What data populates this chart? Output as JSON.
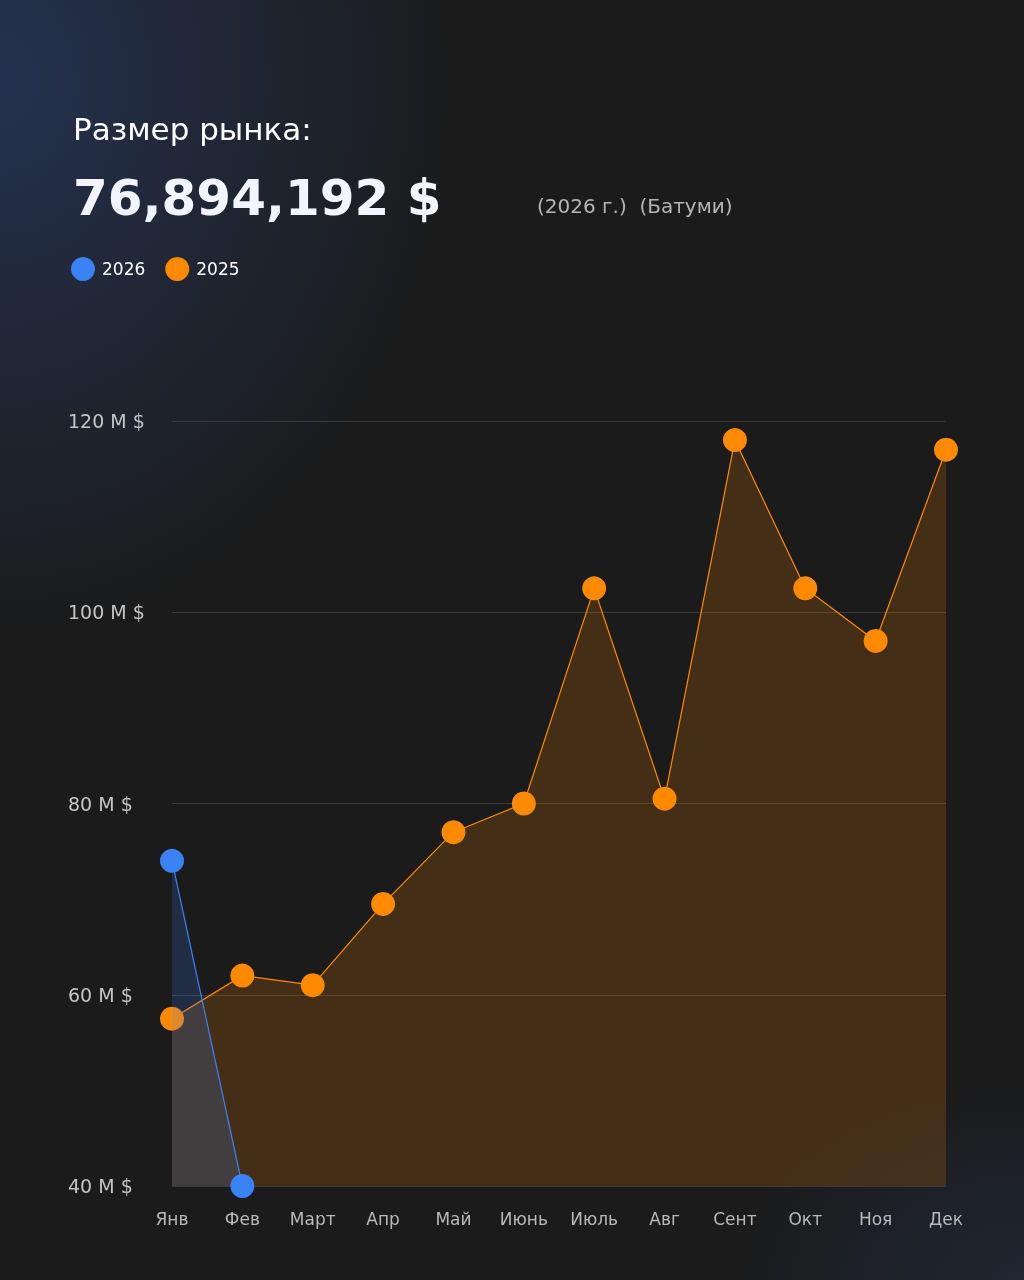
{
  "chart_data": {
    "type": "area",
    "title": "Размер рынка:",
    "subtitle": "76,894,192 $",
    "annotations": [
      "(2026 г.)  (Батуми)"
    ],
    "categories": [
      "Янв",
      "Фев",
      "Март",
      "Апр",
      "Май",
      "Июнь",
      "Июль",
      "Авг",
      "Сент",
      "Окт",
      "Ноя",
      "Дек"
    ],
    "ylim": [
      40,
      120
    ],
    "yticks": [
      {
        "value": 40,
        "label": "40 M $"
      },
      {
        "value": 60,
        "label": "60 M $"
      },
      {
        "value": 80,
        "label": "80 M $"
      },
      {
        "value": 100,
        "label": "100 M $"
      },
      {
        "value": 120,
        "label": "120 M $"
      }
    ],
    "series": [
      {
        "name": "2026",
        "color": "#3b82f6",
        "values": [
          74,
          40,
          null,
          null,
          null,
          null,
          null,
          null,
          null,
          null,
          null,
          null
        ]
      },
      {
        "name": "2025",
        "color": "#ff8a00",
        "values": [
          57.5,
          62,
          61,
          69.5,
          77,
          80,
          102.5,
          80.5,
          118,
          102.5,
          97,
          117
        ]
      }
    ],
    "grid": "y",
    "legend": "top left",
    "marker": "circle"
  }
}
